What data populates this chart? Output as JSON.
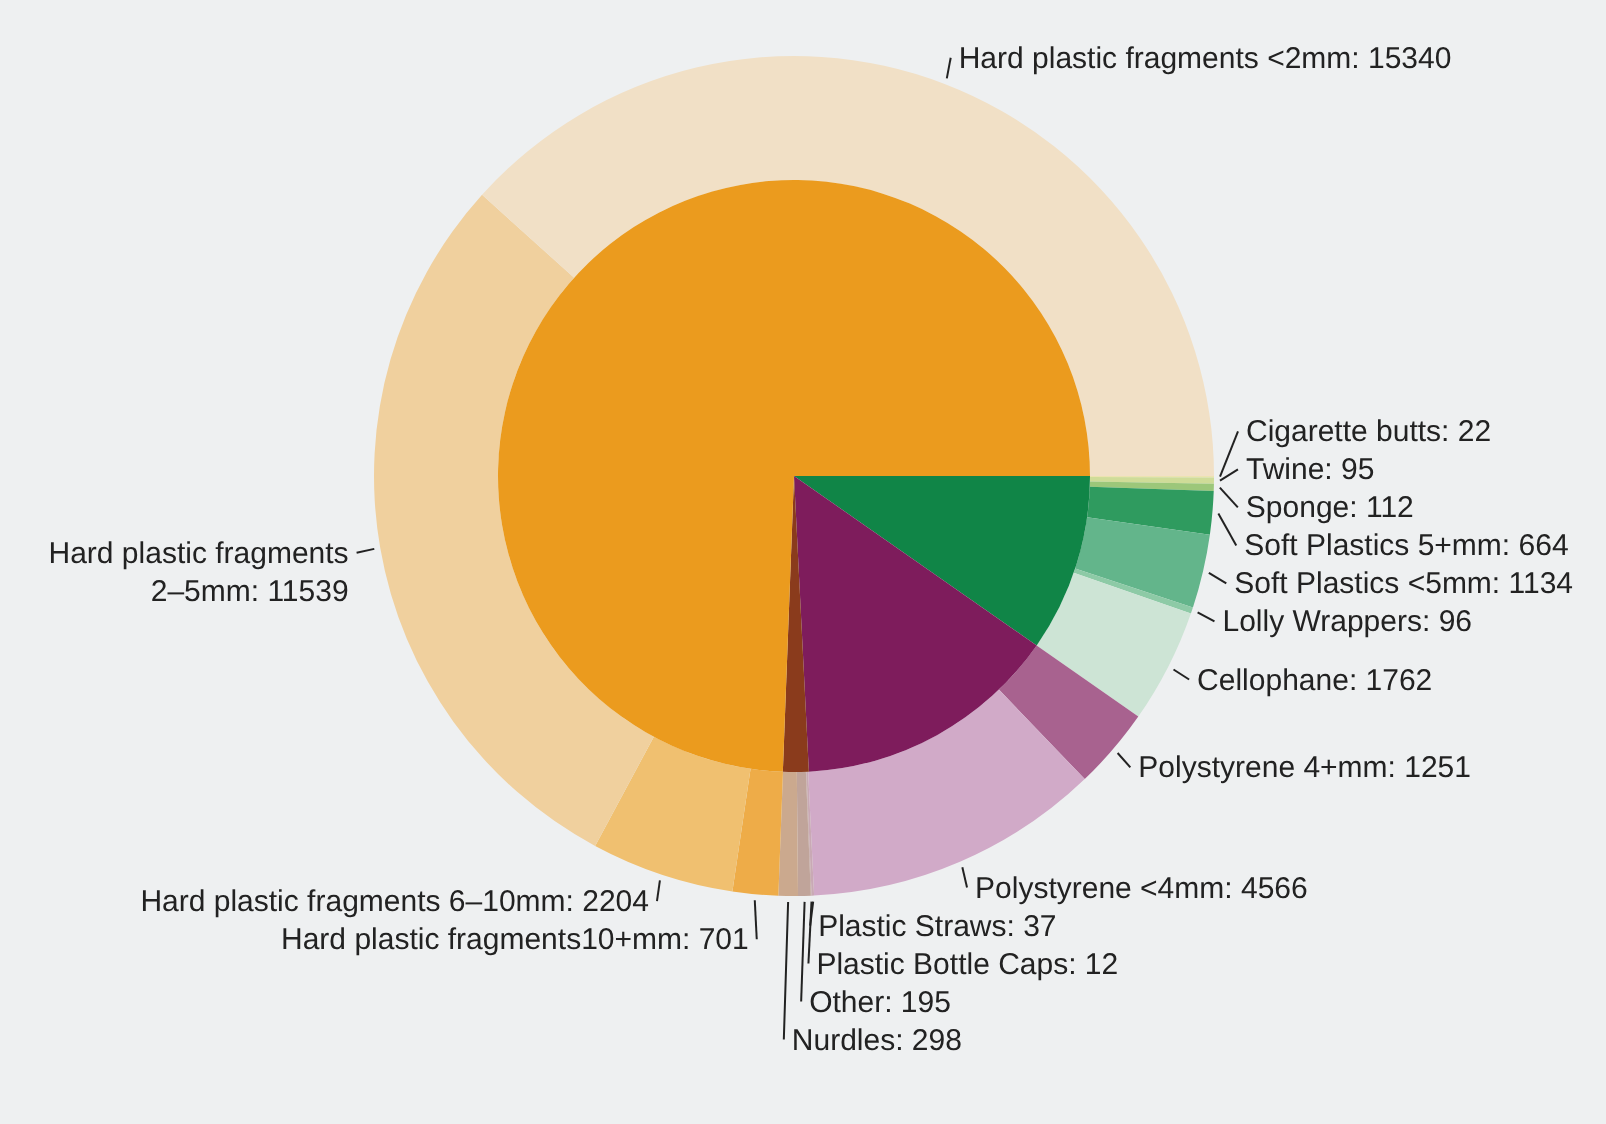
{
  "chart_data": [
    {
      "type": "donut",
      "categories": [
        "Cigarette butts: 22",
        "Twine: 95",
        "Sponge: 112",
        "Soft Plastics 5+mm: 664",
        "Soft Plastics <5mm: 1134",
        "Lolly Wrappers: 96",
        "Cellophane: 1762",
        "Polystyrene 4+mm: 1251",
        "Polystyrene <4mm: 4566",
        "Plastic Straws: 37",
        "Plastic Bottle Caps: 12",
        "Other: 195",
        "Nurdles: 298",
        "Hard plastic fragments10+mm: 701",
        "Hard plastic fragments 6–10mm: 2204",
        "Hard plastic fragments 2–5mm: 11539",
        "Hard plastic fragments <2mm: 15340"
      ],
      "values": [
        22,
        95,
        112,
        664,
        1134,
        96,
        1762,
        1251,
        4566,
        37,
        12,
        195,
        298,
        701,
        2204,
        11539,
        15340
      ],
      "colors": [
        "#ece3b0",
        "#cfdc98",
        "#9cc77a",
        "#2f9b5f",
        "#63b58b",
        "#8dcaa6",
        "#cde4d5",
        "#a8628f",
        "#d1aac8",
        "#c9a9b5",
        "#c4a6a6",
        "#c0a49a",
        "#cba98e",
        "#eeac48",
        "#f0c070",
        "#f0d09e",
        "#f1e0c6"
      ]
    },
    {
      "type": "pie",
      "categories": [
        null,
        null,
        null,
        null
      ],
      "values": [
        9.7,
        14.5,
        1.4,
        74.4
      ],
      "colors": [
        "#108547",
        "#7e1c5c",
        "#8a3b1c",
        "#eb9b1e"
      ]
    }
  ]
}
